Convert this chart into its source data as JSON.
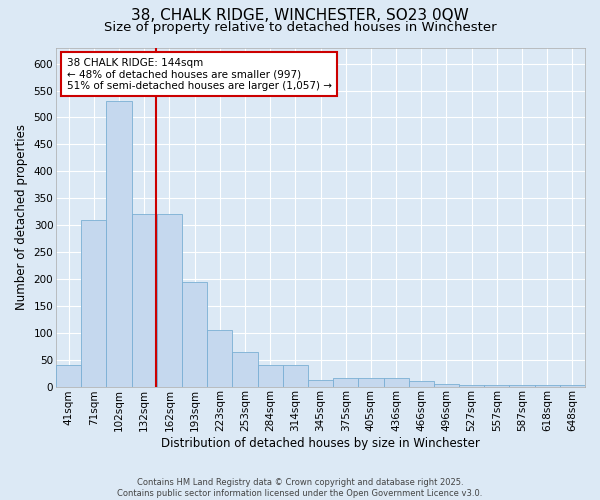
{
  "title_line1": "38, CHALK RIDGE, WINCHESTER, SO23 0QW",
  "title_line2": "Size of property relative to detached houses in Winchester",
  "xlabel": "Distribution of detached houses by size in Winchester",
  "ylabel": "Number of detached properties",
  "categories": [
    "41sqm",
    "71sqm",
    "102sqm",
    "132sqm",
    "162sqm",
    "193sqm",
    "223sqm",
    "253sqm",
    "284sqm",
    "314sqm",
    "345sqm",
    "375sqm",
    "405sqm",
    "436sqm",
    "466sqm",
    "496sqm",
    "527sqm",
    "557sqm",
    "587sqm",
    "618sqm",
    "648sqm"
  ],
  "values": [
    40,
    310,
    530,
    320,
    320,
    195,
    105,
    65,
    40,
    40,
    12,
    15,
    15,
    15,
    10,
    5,
    3,
    3,
    3,
    3,
    3
  ],
  "bar_color": "#c5d8ee",
  "bar_edge_color": "#7aafd4",
  "vline_color": "#cc0000",
  "vline_x": 3.48,
  "annotation_text": "38 CHALK RIDGE: 144sqm\n← 48% of detached houses are smaller (997)\n51% of semi-detached houses are larger (1,057) →",
  "annotation_box_color": "#ffffff",
  "annotation_border_color": "#cc0000",
  "ylim": [
    0,
    630
  ],
  "yticks": [
    0,
    50,
    100,
    150,
    200,
    250,
    300,
    350,
    400,
    450,
    500,
    550,
    600
  ],
  "background_color": "#dce9f5",
  "grid_color": "#ffffff",
  "footer_text": "Contains HM Land Registry data © Crown copyright and database right 2025.\nContains public sector information licensed under the Open Government Licence v3.0.",
  "title_fontsize": 11,
  "subtitle_fontsize": 9.5,
  "axis_label_fontsize": 8.5,
  "tick_fontsize": 7.5,
  "annotation_fontsize": 7.5,
  "footer_fontsize": 6
}
